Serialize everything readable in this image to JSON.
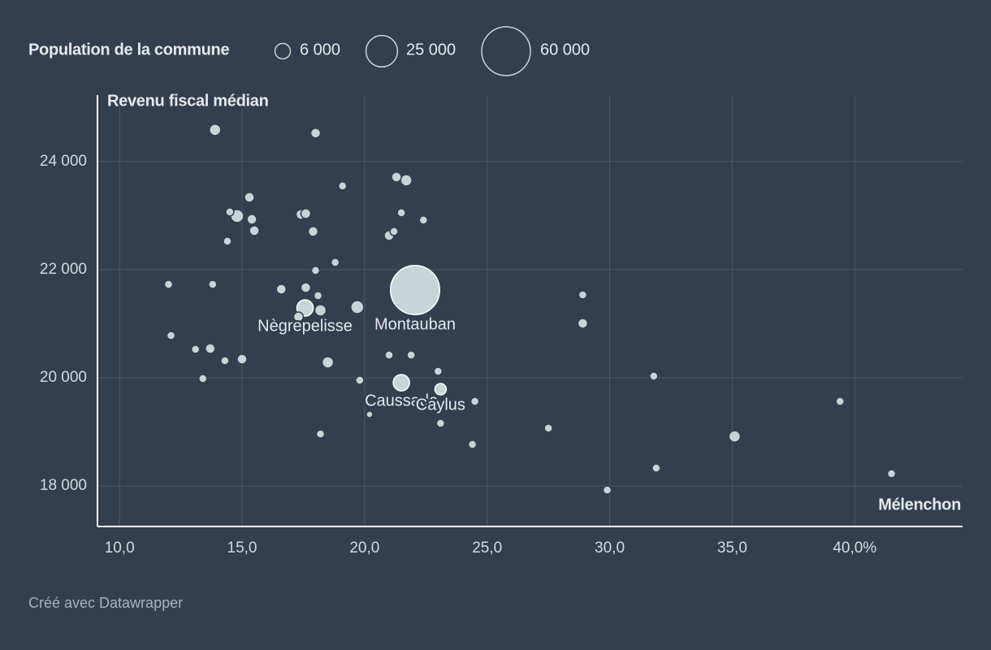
{
  "chart_data": {
    "type": "scatter",
    "x_label": "Mélenchon",
    "y_label": "Revenu fiscal médian",
    "size_legend_title": "Population de la commune",
    "size_legend": [
      {
        "value": 6000,
        "label": "6 000"
      },
      {
        "value": 25000,
        "label": "25 000"
      },
      {
        "value": 60000,
        "label": "60 000"
      }
    ],
    "source": "Créé avec Datawrapper",
    "xlim": [
      9.1,
      44.4
    ],
    "ylim": [
      17250,
      25230
    ],
    "xticks": [
      {
        "value": 10,
        "label": "10,0"
      },
      {
        "value": 15,
        "label": "15,0"
      },
      {
        "value": 20,
        "label": "20,0"
      },
      {
        "value": 25,
        "label": "25,0"
      },
      {
        "value": 30,
        "label": "30,0"
      },
      {
        "value": 35,
        "label": "35,0"
      },
      {
        "value": 40,
        "label": "40,0%"
      }
    ],
    "yticks": [
      {
        "value": 18000,
        "label": "18 000"
      },
      {
        "value": 20000,
        "label": "20 000"
      },
      {
        "value": 22000,
        "label": "22 000"
      },
      {
        "value": 24000,
        "label": "24 000"
      }
    ],
    "grid": true,
    "series": [
      {
        "color": "#c9d4d6",
        "x": [
          13.9,
          18.0,
          15.3,
          14.5,
          14.8,
          15.4,
          15.5,
          14.4,
          17.4,
          17.6,
          17.9,
          19.1,
          21.3,
          21.7,
          21.5,
          22.4,
          21.2,
          21.0,
          18.8,
          18.0,
          12.0,
          13.8,
          16.6,
          17.6,
          18.1,
          22.06,
          17.57,
          17.3,
          18.2,
          19.7,
          28.9,
          28.9,
          12.1,
          13.1,
          13.7,
          14.3,
          15.0,
          18.5,
          21.0,
          21.9,
          23.0,
          13.4,
          19.8,
          21.5,
          23.1,
          31.8,
          24.5,
          20.2,
          23.1,
          18.2,
          24.4,
          27.5,
          39.4,
          35.1,
          31.9,
          29.9,
          41.5
        ],
        "values": [
          24586,
          24526,
          23338,
          23068,
          22992,
          22932,
          22722,
          22526,
          23023,
          23038,
          22707,
          23549,
          23714,
          23654,
          23053,
          22917,
          22707,
          22632,
          22135,
          21985,
          21729,
          21729,
          21639,
          21669,
          21519,
          21624,
          21293,
          21128,
          21248,
          21308,
          21534,
          21008,
          20782,
          20526,
          20541,
          20316,
          20346,
          20286,
          20421,
          20421,
          20120,
          19985,
          19955,
          19910,
          19789,
          20030,
          19564,
          19323,
          19158,
          18962,
          18767,
          19068,
          19564,
          18917,
          18331,
          17925,
          18226
        ],
        "sizes": [
          3265,
          2400,
          2400,
          1666,
          4265,
          2400,
          2400,
          1666,
          2400,
          2400,
          2400,
          1666,
          2400,
          3265,
          1666,
          1666,
          1666,
          2400,
          1666,
          1666,
          1666,
          1666,
          2400,
          2400,
          1666,
          61000,
          6664,
          2400,
          3265,
          4265,
          1666,
          2400,
          1666,
          1666,
          2400,
          1666,
          2400,
          3265,
          1666,
          1666,
          1666,
          1666,
          1666,
          6664,
          3265,
          1666,
          1666,
          1066,
          1666,
          1666,
          1666,
          1666,
          1666,
          3265,
          1666,
          1666,
          1666
        ],
        "labels": [
          null,
          null,
          null,
          null,
          null,
          null,
          null,
          null,
          null,
          null,
          null,
          null,
          null,
          null,
          null,
          null,
          null,
          null,
          null,
          null,
          null,
          null,
          null,
          null,
          null,
          "Montauban",
          "Nègrepelisse",
          null,
          null,
          null,
          null,
          null,
          null,
          null,
          null,
          null,
          null,
          null,
          null,
          null,
          null,
          null,
          null,
          "Caussade",
          "Caylus",
          null,
          null,
          null,
          null,
          null,
          null,
          null,
          null,
          null,
          null,
          null,
          null
        ]
      }
    ]
  }
}
